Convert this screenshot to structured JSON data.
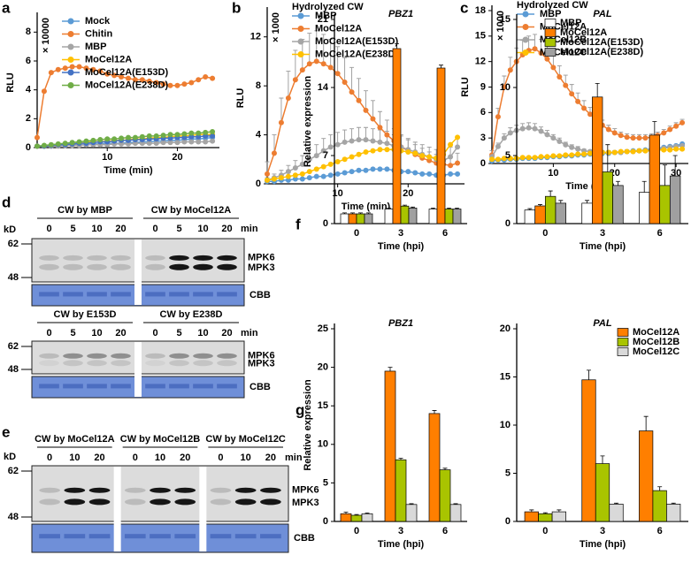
{
  "chart_data": [
    {
      "type": "line",
      "label": "a",
      "ylabel": "RLU",
      "yunit": "× 10000",
      "xlabel": "Time (min)",
      "x": [
        0,
        1,
        2,
        3,
        4,
        5,
        6,
        7,
        8,
        9,
        10,
        11,
        12,
        13,
        14,
        15,
        16,
        17,
        18,
        19,
        20,
        21,
        22,
        23,
        24,
        25
      ],
      "xlim": [
        0,
        26
      ],
      "xticks": [
        10,
        20
      ],
      "ylim": [
        0,
        9
      ],
      "yticks": [
        0,
        2,
        4,
        6,
        8
      ],
      "legend": "upper left",
      "series": [
        {
          "name": "Mock",
          "color": "#5b9bd5",
          "values": [
            0.1,
            0.1,
            0.1,
            0.15,
            0.15,
            0.2,
            0.2,
            0.2,
            0.25,
            0.25,
            0.3,
            0.3,
            0.3,
            0.35,
            0.35,
            0.4,
            0.4,
            0.45,
            0.45,
            0.5,
            0.5,
            0.55,
            0.6,
            0.6,
            0.65,
            0.7
          ]
        },
        {
          "name": "Chitin",
          "color": "#ed7d31",
          "values": [
            0.7,
            3.9,
            5.2,
            5.4,
            5.5,
            5.6,
            5.6,
            5.5,
            5.4,
            5.3,
            5.1,
            5.0,
            4.9,
            4.8,
            4.7,
            4.7,
            4.6,
            4.5,
            4.4,
            4.3,
            4.3,
            4.4,
            4.5,
            4.7,
            4.9,
            4.8
          ]
        },
        {
          "name": "MBP",
          "color": "#a5a5a5",
          "values": [
            0.1,
            0.1,
            0.1,
            0.1,
            0.15,
            0.15,
            0.15,
            0.2,
            0.2,
            0.2,
            0.2,
            0.25,
            0.25,
            0.25,
            0.3,
            0.3,
            0.3,
            0.3,
            0.35,
            0.35,
            0.35,
            0.4,
            0.4,
            0.4,
            0.4,
            0.45
          ]
        },
        {
          "name": "MoCel12A",
          "color": "#ffc000",
          "values": [
            0.1,
            0.1,
            0.15,
            0.2,
            0.2,
            0.25,
            0.3,
            0.35,
            0.4,
            0.4,
            0.45,
            0.5,
            0.5,
            0.55,
            0.6,
            0.6,
            0.65,
            0.7,
            0.7,
            0.75,
            0.8,
            0.8,
            0.85,
            0.9,
            0.9,
            0.9
          ]
        },
        {
          "name": "MoCel12A(E153D)",
          "color": "#4472c4",
          "values": [
            0.1,
            0.1,
            0.15,
            0.2,
            0.2,
            0.25,
            0.3,
            0.3,
            0.35,
            0.4,
            0.4,
            0.45,
            0.5,
            0.5,
            0.55,
            0.55,
            0.6,
            0.6,
            0.65,
            0.65,
            0.7,
            0.7,
            0.75,
            0.75,
            0.8,
            0.8
          ]
        },
        {
          "name": "MoCel12A(E238D)",
          "color": "#70ad47",
          "values": [
            0.1,
            0.15,
            0.2,
            0.25,
            0.3,
            0.35,
            0.4,
            0.45,
            0.5,
            0.55,
            0.6,
            0.6,
            0.65,
            0.7,
            0.7,
            0.75,
            0.8,
            0.8,
            0.85,
            0.9,
            0.9,
            0.95,
            1.0,
            1.0,
            1.05,
            1.1
          ]
        }
      ]
    },
    {
      "type": "line",
      "label": "b",
      "title": "Hydrolyzed CW",
      "ylabel": "RLU",
      "yunit": "× 1000",
      "xlabel": "Time (min)",
      "x": [
        0,
        1,
        2,
        3,
        4,
        5,
        6,
        7,
        8,
        9,
        10,
        11,
        12,
        13,
        14,
        15,
        16,
        17,
        18,
        19,
        20,
        21,
        22,
        23,
        24,
        25,
        26,
        27
      ],
      "xlim": [
        0,
        28
      ],
      "xticks": [
        10,
        20
      ],
      "ylim": [
        0,
        14
      ],
      "yticks": [
        0,
        4,
        8,
        12
      ],
      "legend": "upper left",
      "series": [
        {
          "name": "MBP",
          "color": "#5b9bd5",
          "values": [
            0.2,
            0.2,
            0.3,
            0.3,
            0.4,
            0.4,
            0.5,
            0.6,
            0.6,
            0.7,
            0.8,
            0.9,
            1,
            1.1,
            1.1,
            1.2,
            1.2,
            1.2,
            1.1,
            1,
            1,
            0.9,
            0.8,
            0.8,
            0.7,
            0.7,
            0.8,
            0.8
          ]
        },
        {
          "name": "MoCel12A",
          "color": "#ed7d31",
          "values": [
            0.8,
            2.5,
            5,
            7,
            8.5,
            9.3,
            9.8,
            10,
            9.8,
            9.5,
            9,
            8.3,
            7.5,
            6.8,
            6,
            5.3,
            4.6,
            4,
            3.5,
            3,
            2.7,
            2.4,
            2.1,
            1.9,
            1.7,
            1.6,
            1.5,
            1.7
          ],
          "errors": [
            1,
            1.5,
            2,
            2.2,
            2.4,
            2.5,
            2.5,
            2.5,
            2.4,
            2.3,
            2.2,
            2,
            2,
            1.8,
            1.6,
            1.5,
            1.3,
            1.2,
            1,
            1,
            0.9,
            0.8,
            0.8,
            0.7,
            0.7,
            0.7,
            0.7,
            0.8
          ]
        },
        {
          "name": "MoCel12A(E153D)",
          "color": "#a5a5a5",
          "values": [
            0.3,
            0.5,
            0.7,
            1,
            1.3,
            1.6,
            2,
            2.3,
            2.7,
            3,
            3.2,
            3.4,
            3.5,
            3.6,
            3.6,
            3.5,
            3.4,
            3.3,
            3.1,
            3,
            2.8,
            2.6,
            2.4,
            2.2,
            2,
            1.9,
            2.2,
            3
          ],
          "errors": [
            0.2,
            0.3,
            0.4,
            0.5,
            0.6,
            0.7,
            0.8,
            0.9,
            1,
            1,
            1,
            1,
            1,
            1,
            1,
            1,
            1,
            1,
            0.9,
            0.9,
            0.9,
            0.8,
            0.8,
            0.8,
            0.8,
            0.8,
            0.8,
            0.8
          ]
        },
        {
          "name": "MoCel12A(E238D)",
          "color": "#ffc000",
          "values": [
            0.3,
            0.4,
            0.5,
            0.6,
            0.7,
            0.8,
            1,
            1.2,
            1.4,
            1.6,
            1.8,
            2,
            2.2,
            2.4,
            2.6,
            2.7,
            2.8,
            2.8,
            2.8,
            2.7,
            2.6,
            2.5,
            2.3,
            2.2,
            2.1,
            2.4,
            3.2,
            3.8
          ]
        }
      ]
    },
    {
      "type": "line",
      "label": "c",
      "title": "Hydrolyzed CW",
      "ylabel": "RLU",
      "yunit": "× 1000",
      "xlabel": "Time (min)",
      "x": [
        0,
        1,
        2,
        3,
        4,
        5,
        6,
        7,
        8,
        9,
        10,
        11,
        12,
        13,
        14,
        15,
        16,
        17,
        18,
        19,
        20,
        21,
        22,
        23,
        24,
        25,
        26,
        27,
        28,
        29,
        30,
        31
      ],
      "xlim": [
        0,
        32
      ],
      "xticks": [
        10,
        20,
        30
      ],
      "ylim": [
        0,
        18
      ],
      "yticks": [
        0,
        3,
        6,
        9,
        12,
        15,
        18
      ],
      "legend": "upper left",
      "series": [
        {
          "name": "MBP",
          "color": "#5b9bd5",
          "values": [
            0.3,
            0.4,
            0.4,
            0.5,
            0.5,
            0.6,
            0.6,
            0.6,
            0.7,
            0.7,
            0.8,
            0.8,
            0.9,
            0.9,
            1.0,
            1.0,
            1.1,
            1.1,
            1.2,
            1.2,
            1.3,
            1.3,
            1.4,
            1.5,
            1.5,
            1.6,
            1.7,
            1.8,
            1.9,
            2.0,
            2.1,
            2.3
          ]
        },
        {
          "name": "MoCel12A",
          "color": "#ed7d31",
          "values": [
            1,
            5.5,
            9,
            11,
            12,
            12.8,
            13.3,
            13.5,
            13,
            12.3,
            11.3,
            10.2,
            9.2,
            8.2,
            7.3,
            6.5,
            5.8,
            5.1,
            4.5,
            4,
            3.6,
            3.3,
            3.1,
            3,
            3,
            3,
            3.1,
            3.3,
            3.6,
            4,
            4.4,
            4.8
          ],
          "errors": [
            0.5,
            1,
            1.3,
            1.5,
            1.6,
            1.7,
            1.7,
            1.7,
            1.6,
            1.5,
            1.4,
            1.3,
            1.2,
            1.1,
            1,
            0.9,
            0.8,
            0.7,
            0.6,
            0.5,
            0.5,
            0.4,
            0.4,
            0.4,
            0.4,
            0.4,
            0.4,
            0.4,
            0.4,
            0.4,
            0.4,
            0.4
          ]
        },
        {
          "name": "MoCel12B",
          "color": "#a5a5a5",
          "values": [
            0.8,
            2,
            3,
            3.6,
            3.9,
            4.1,
            4.2,
            4.1,
            3.8,
            3.4,
            3,
            2.6,
            2.2,
            1.9,
            1.7,
            1.5,
            1.4,
            1.3,
            1.3,
            1.3,
            1.3,
            1.3,
            1.4,
            1.4,
            1.5,
            1.5,
            1.6,
            1.7,
            1.8,
            1.9,
            2,
            2.1
          ],
          "errors": [
            0.3,
            0.4,
            0.5,
            0.6,
            0.6,
            0.6,
            0.6,
            0.6,
            0.5,
            0.5,
            0.4,
            0.4,
            0.3,
            0.3,
            0.3,
            0.2,
            0.2,
            0.2,
            0.2,
            0.2,
            0.2,
            0.2,
            0.2,
            0.2,
            0.2,
            0.2,
            0.2,
            0.2,
            0.2,
            0.2,
            0.2,
            0.2
          ]
        },
        {
          "name": "MoCel12C",
          "color": "#ffc000",
          "values": [
            0.5,
            0.5,
            0.6,
            0.6,
            0.6,
            0.7,
            0.7,
            0.7,
            0.8,
            0.8,
            0.9,
            0.9,
            1.0,
            1.0,
            1.1,
            1.1,
            1.2,
            1.2,
            1.3,
            1.3,
            1.3,
            1.4,
            1.4,
            1.4,
            1.5,
            1.5,
            1.5,
            1.6,
            1.6,
            1.6,
            1.7,
            1.7
          ]
        }
      ]
    },
    {
      "type": "bar",
      "label": "f",
      "title": "PBZ1",
      "ylabel": "Relative expression",
      "xlabel": "Time (hpi)",
      "categories": [
        "0",
        "3",
        "6"
      ],
      "ylim": [
        0,
        21
      ],
      "yticks": [
        0,
        7,
        14,
        21
      ],
      "series": [
        {
          "color": "#ffffff",
          "values": [
            1,
            1.5,
            1.5
          ],
          "errors": [
            0.1,
            0.1,
            0.1
          ]
        },
        {
          "color": "#ff7f00",
          "values": [
            1,
            18,
            16
          ],
          "errors": [
            0.1,
            0.5,
            0.3
          ]
        },
        {
          "color": "#a9c400",
          "values": [
            1,
            1.8,
            1.5
          ],
          "errors": [
            0.1,
            0.1,
            0.1
          ]
        },
        {
          "color": "#a0a0a0",
          "values": [
            1,
            1.6,
            1.5
          ],
          "errors": [
            0.1,
            0.1,
            0.1
          ]
        }
      ]
    },
    {
      "type": "bar",
      "title": "PAL",
      "xlabel": "Time (hpi)",
      "categories": [
        "0",
        "3",
        "6"
      ],
      "ylim": [
        0,
        15
      ],
      "yticks": [
        0,
        5,
        10,
        15
      ],
      "legend": "upper right",
      "series": [
        {
          "name": "MBP",
          "color": "#ffffff",
          "values": [
            1,
            1.5,
            2.3
          ],
          "errors": [
            0.1,
            0.2,
            0.8
          ]
        },
        {
          "name": "MoCel12A",
          "color": "#ff7f00",
          "values": [
            1.3,
            9.3,
            6.5
          ],
          "errors": [
            0.1,
            1,
            1
          ]
        },
        {
          "name": "MoCel12A(E153D)",
          "color": "#a9c400",
          "values": [
            2,
            3.8,
            2.8
          ],
          "errors": [
            0.4,
            2,
            1.5
          ]
        },
        {
          "name": "MoCel12A(E238D)",
          "color": "#a0a0a0",
          "values": [
            1.5,
            2.8,
            3.5
          ],
          "errors": [
            0.2,
            0.3,
            1.5
          ]
        }
      ]
    },
    {
      "type": "bar",
      "label": "g",
      "title": "PBZ1",
      "ylabel": "Relative expression",
      "xlabel": "Time (hpi)",
      "categories": [
        "0",
        "3",
        "6"
      ],
      "ylim": [
        0,
        25
      ],
      "yticks": [
        0,
        5,
        10,
        15,
        20,
        25
      ],
      "series": [
        {
          "color": "#ff7f00",
          "values": [
            1,
            19.5,
            14
          ],
          "errors": [
            0.2,
            0.5,
            0.4
          ]
        },
        {
          "color": "#a9c400",
          "values": [
            0.8,
            8,
            6.7
          ],
          "errors": [
            0.1,
            0.2,
            0.2
          ]
        },
        {
          "color": "#d9d9d9",
          "values": [
            1,
            2.2,
            2.2
          ],
          "errors": [
            0.1,
            0.1,
            0.1
          ]
        }
      ]
    },
    {
      "type": "bar",
      "title": "PAL",
      "xlabel": "Time (hpi)",
      "categories": [
        "0",
        "3",
        "6"
      ],
      "ylim": [
        0,
        20
      ],
      "yticks": [
        0,
        5,
        10,
        15,
        20
      ],
      "legend": "upper right",
      "series": [
        {
          "name": "MoCel12A",
          "color": "#ff7f00",
          "values": [
            1,
            14.7,
            9.4
          ],
          "errors": [
            0.2,
            1,
            1.5
          ]
        },
        {
          "name": "MoCel12B",
          "color": "#a9c400",
          "values": [
            0.8,
            6,
            3.2
          ],
          "errors": [
            0.1,
            0.8,
            0.4
          ]
        },
        {
          "name": "MoCel12C",
          "color": "#d9d9d9",
          "values": [
            1,
            1.8,
            1.8
          ],
          "errors": [
            0.2,
            0.1,
            0.1
          ]
        }
      ]
    }
  ],
  "blots": [
    {
      "label": "d",
      "kd": "kD",
      "markers": [
        "62",
        "48"
      ],
      "unit": "min",
      "bands": [
        "MPK6",
        "MPK3"
      ],
      "loading": "CBB",
      "groups": [
        {
          "title": "CW by MBP",
          "lanes": [
            "0",
            "5",
            "10",
            "20"
          ]
        },
        {
          "title": "CW by MoCel12A",
          "lanes": [
            "0",
            "5",
            "10",
            "20"
          ]
        }
      ]
    },
    {
      "markers": [
        "62",
        "48"
      ],
      "unit": "min",
      "bands": [
        "MPK6",
        "MPK3"
      ],
      "loading": "CBB",
      "groups": [
        {
          "title": "CW by E153D",
          "lanes": [
            "0",
            "5",
            "10",
            "20"
          ]
        },
        {
          "title": "CW by E238D",
          "lanes": [
            "0",
            "5",
            "10",
            "20"
          ]
        }
      ]
    },
    {
      "label": "e",
      "kd": "kD",
      "markers": [
        "62",
        "48"
      ],
      "unit": "min",
      "bands": [
        "MPK6",
        "MPK3"
      ],
      "loading": "CBB",
      "groups": [
        {
          "title": "CW by MoCel12A",
          "lanes": [
            "0",
            "10",
            "20"
          ]
        },
        {
          "title": "CW by MoCel12B",
          "lanes": [
            "0",
            "10",
            "20"
          ]
        },
        {
          "title": "CW by MoCel12C",
          "lanes": [
            "0",
            "10",
            "20"
          ]
        }
      ]
    }
  ]
}
